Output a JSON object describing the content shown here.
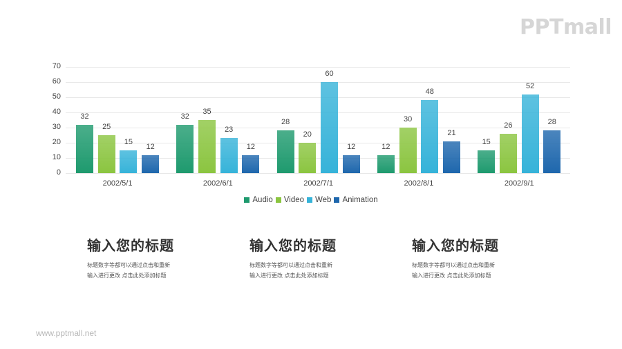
{
  "logo": {
    "text": "PPTmall"
  },
  "footer": {
    "url": "www.pptmall.net"
  },
  "chart_data": {
    "type": "bar",
    "title": "",
    "xlabel": "",
    "ylabel": "",
    "ylim": [
      0,
      70
    ],
    "yticks": [
      0,
      10,
      20,
      30,
      40,
      50,
      60,
      70
    ],
    "grid": true,
    "legend_position": "bottom",
    "categories": [
      "2002/5/1",
      "2002/6/1",
      "2002/7/1",
      "2002/8/1",
      "2002/9/1"
    ],
    "series": [
      {
        "name": "Audio",
        "color": "#1e9a6e",
        "values": [
          32,
          32,
          28,
          12,
          15
        ]
      },
      {
        "name": "Video",
        "color": "#8bc540",
        "values": [
          25,
          35,
          20,
          30,
          26
        ]
      },
      {
        "name": "Web",
        "color": "#36b3d9",
        "values": [
          15,
          23,
          60,
          48,
          52
        ]
      },
      {
        "name": "Animation",
        "color": "#1e67ad",
        "values": [
          12,
          12,
          12,
          21,
          28
        ]
      }
    ],
    "data_labels": true
  },
  "cards": [
    {
      "title": "输入您的标题",
      "body_line1": "标题数字等都可以通过点击和重新",
      "body_line2": "输入进行更改 点击此处添加标题"
    },
    {
      "title": "输入您的标题",
      "body_line1": "标题数字等都可以通过点击和重新",
      "body_line2": "输入进行更改 点击此处添加标题"
    },
    {
      "title": "输入您的标题",
      "body_line1": "标题数字等都可以通过点击和重新",
      "body_line2": "输入进行更改 点击此处添加标题"
    }
  ]
}
